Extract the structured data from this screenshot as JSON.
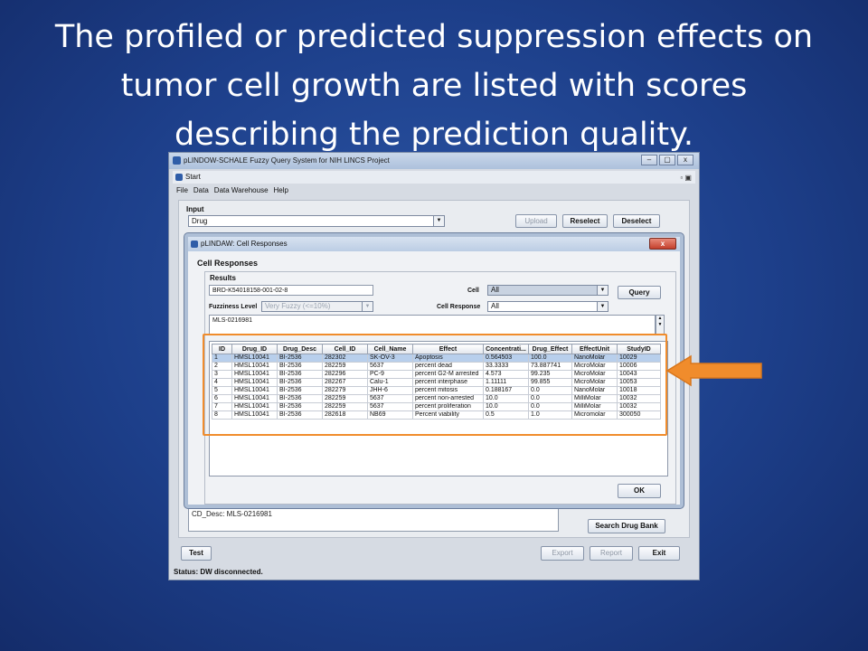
{
  "slide": {
    "title_line1": "The profiled or predicted suppression effects on",
    "title_line2": "tumor cell growth are listed with scores",
    "title_line3": "describing the prediction quality."
  },
  "main_window": {
    "title": "pLINDOW-SCHALE Fuzzy Query System for NIH LINCS Project",
    "controls": [
      "–",
      "▢",
      "x"
    ],
    "inner_title": "Start",
    "menu": [
      "File",
      "Data",
      "Data Warehouse",
      "Help"
    ],
    "input_label": "Input",
    "input_combo": "Drug",
    "buttons": {
      "upload": "Upload",
      "reselect": "Reselect",
      "deselect": "Deselect",
      "search_drug_bank": "Search Drug Bank",
      "test": "Test",
      "export": "Export",
      "report": "Report",
      "exit": "Exit"
    },
    "cd_desc": "CD_Desc: MLS-0216981",
    "status": "Status: DW disconnected."
  },
  "dialog": {
    "title": "pLINDAW: Cell Responses",
    "close": "x",
    "heading": "Cell Responses",
    "results_label": "Results",
    "compound_id": "BRD-K54018158-001-02-8",
    "cell_label": "Cell",
    "cell_value": "All",
    "query_button": "Query",
    "fuzziness_label": "Fuzziness Level",
    "fuzziness_value": "Very Fuzzy (<=10%)",
    "cell_response_label": "Cell Response",
    "cell_response_value": "All",
    "text_area": "MLS-0216981",
    "ok_button": "OK",
    "table": {
      "headers": [
        "ID",
        "Drug_ID",
        "Drug_Desc",
        "Cell_ID",
        "Cell_Name",
        "Effect",
        "Concentrati...",
        "Drug_Effect",
        "EffectUnit",
        "StudyID"
      ],
      "rows": [
        [
          "1",
          "HMSL10041",
          "BI-2536",
          "282302",
          "SK-OV-3",
          "Apoptosis",
          "0.564503",
          "100.0",
          "NanoMolar",
          "10029"
        ],
        [
          "2",
          "HMSL10041",
          "BI-2536",
          "282259",
          "5637",
          "percent dead",
          "33.3333",
          "73.887741",
          "MicroMolar",
          "10006"
        ],
        [
          "3",
          "HMSL10041",
          "BI-2536",
          "282296",
          "PC-9",
          "percent G2-M arrested",
          "4.573",
          "99.235",
          "MicroMolar",
          "10043"
        ],
        [
          "4",
          "HMSL10041",
          "BI-2536",
          "282267",
          "Calu-1",
          "percent interphase",
          "1.11111",
          "99.855",
          "MicroMolar",
          "10053"
        ],
        [
          "5",
          "HMSL10041",
          "BI-2536",
          "282279",
          "JHH-6",
          "percent mitosis",
          "0.188167",
          "0.0",
          "NanoMolar",
          "10018"
        ],
        [
          "6",
          "HMSL10041",
          "BI-2536",
          "282259",
          "5637",
          "percent non-arrested",
          "10.0",
          "0.0",
          "MilliMolar",
          "10032"
        ],
        [
          "7",
          "HMSL10041",
          "BI-2536",
          "282259",
          "5637",
          "percent proliferation",
          "10.0",
          "0.0",
          "MilliMolar",
          "10032"
        ],
        [
          "8",
          "HMSL10041",
          "BI-2536",
          "282618",
          "NB69",
          "Percent viability",
          "0.5",
          "1.0",
          "Micromolar",
          "300050"
        ]
      ]
    }
  },
  "colors": {
    "highlight": "#f08c2c",
    "selection": "#b8cfec"
  }
}
